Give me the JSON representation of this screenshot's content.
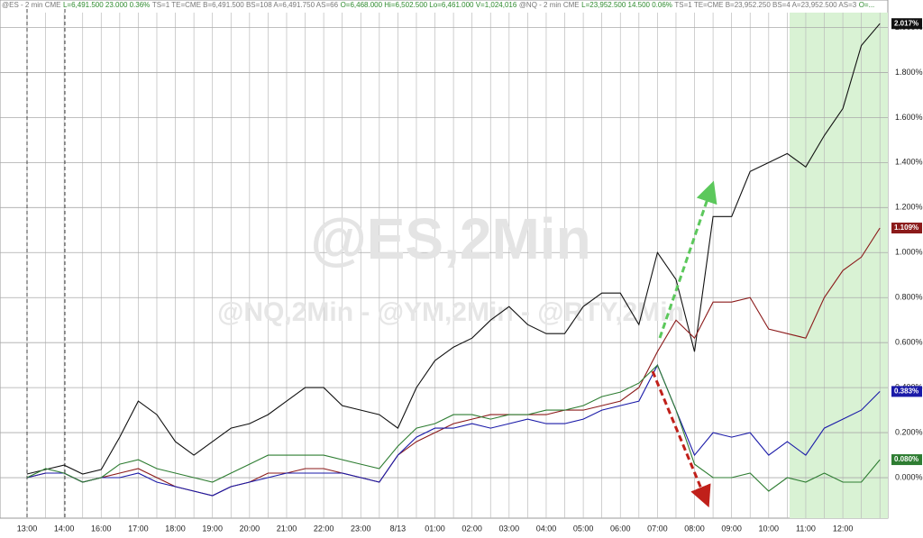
{
  "header": {
    "es_name": "@ES - 2 min CME",
    "es_quote": "L=6,491.500 23.000 0.36%",
    "es_info": "TS=1 TE=CME B=6,491.500 BS=108 A=6,491.750 AS=66",
    "es_ohlc": "O=6,468.000 Hi=6,502.500 Lo=6,461.000 V=1,024,016",
    "nq_name": "@NQ - 2 min CME",
    "nq_quote": "L=23,952.500 14.500 0.06%",
    "nq_info": "TS=1 TE=CME B=23,952.250 BS=4 A=23,952.500 AS=3",
    "nq_ohlc": "O=..."
  },
  "chart_data": {
    "type": "line",
    "watermark": "@ES,2Min",
    "watermark_sub": "@NQ,2Min - @YM,2Min - @RTY,2Min",
    "categories": [
      "13:00",
      null,
      "14:00",
      null,
      "16:00",
      null,
      "17:00",
      null,
      "18:00",
      null,
      "19:00",
      null,
      "20:00",
      null,
      "21:00",
      null,
      "22:00",
      null,
      "23:00",
      null,
      "8/13",
      null,
      "01:00",
      null,
      "02:00",
      null,
      "03:00",
      null,
      "04:00",
      null,
      "05:00",
      null,
      "06:00",
      null,
      "07:00",
      null,
      "08:00",
      null,
      "09:00",
      null,
      "10:00",
      null,
      "11:00",
      null,
      "12:00",
      null,
      null
    ],
    "ylim": [
      -0.18,
      2.05
    ],
    "yticks": [
      {
        "value": 0,
        "label": "0.000%"
      },
      {
        "value": 0.2,
        "label": "0.200%"
      },
      {
        "value": 0.4,
        "label": "0.400%"
      },
      {
        "value": 0.6,
        "label": "0.600%"
      },
      {
        "value": 0.8,
        "label": "0.800%"
      },
      {
        "value": 1.0,
        "label": "1.000%"
      },
      {
        "value": 1.2,
        "label": "1.200%"
      },
      {
        "value": 1.4,
        "label": "1.400%"
      },
      {
        "value": 1.6,
        "label": "1.600%"
      },
      {
        "value": 1.8,
        "label": "1.800%"
      },
      {
        "value": 2.0,
        "label": "2.000%"
      }
    ],
    "grid": true,
    "series": [
      {
        "color": "#111111",
        "values": [
          0.016,
          0.036,
          0.056,
          0.016,
          0.036,
          0.18,
          0.34,
          0.28,
          0.16,
          0.1,
          0.16,
          0.22,
          0.24,
          0.28,
          0.34,
          0.4,
          0.4,
          0.32,
          0.3,
          0.28,
          0.22,
          0.4,
          0.52,
          0.58,
          0.62,
          0.7,
          0.76,
          0.68,
          0.64,
          0.64,
          0.76,
          0.82,
          0.82,
          0.68,
          1.0,
          0.88,
          0.56,
          1.16,
          1.16,
          1.36,
          1.4,
          1.44,
          1.38,
          1.52,
          1.64,
          1.92,
          2.017
        ],
        "value_labels": [
          null,
          null,
          null,
          null,
          null,
          null,
          null,
          null,
          null,
          null,
          null,
          null,
          null,
          null,
          null,
          null,
          null,
          null,
          null,
          null,
          null,
          null,
          null,
          null,
          null,
          null,
          null,
          null,
          null,
          null,
          null,
          null,
          null,
          null,
          null,
          null,
          null,
          null,
          null,
          null,
          null,
          null,
          null,
          null,
          null,
          null,
          "2.017%"
        ]
      },
      {
        "color": "#8b1a1a",
        "values": [
          0.0,
          0.02,
          0.02,
          -0.02,
          0.0,
          0.02,
          0.04,
          0.0,
          -0.04,
          -0.06,
          -0.08,
          -0.04,
          -0.02,
          0.02,
          0.02,
          0.04,
          0.04,
          0.02,
          0.0,
          -0.02,
          0.1,
          0.16,
          0.2,
          0.24,
          0.26,
          0.28,
          0.28,
          0.28,
          0.28,
          0.3,
          0.3,
          0.32,
          0.34,
          0.4,
          0.56,
          0.7,
          0.62,
          0.78,
          0.78,
          0.8,
          0.66,
          0.64,
          0.62,
          0.8,
          0.92,
          0.98,
          1.109
        ],
        "value_labels": [
          null,
          null,
          null,
          null,
          null,
          null,
          null,
          null,
          null,
          null,
          null,
          null,
          null,
          null,
          null,
          null,
          null,
          null,
          null,
          null,
          null,
          null,
          null,
          null,
          null,
          null,
          null,
          null,
          null,
          null,
          null,
          null,
          null,
          null,
          null,
          null,
          null,
          null,
          null,
          null,
          null,
          null,
          null,
          null,
          null,
          null,
          "1.109%"
        ]
      },
      {
        "color": "#1a1aa8",
        "values": [
          0.0,
          0.02,
          0.02,
          -0.02,
          0.0,
          0.0,
          0.02,
          -0.02,
          -0.04,
          -0.06,
          -0.08,
          -0.04,
          -0.02,
          0.0,
          0.02,
          0.02,
          0.02,
          0.02,
          0.0,
          -0.02,
          0.1,
          0.18,
          0.22,
          0.22,
          0.24,
          0.22,
          0.24,
          0.26,
          0.24,
          0.24,
          0.26,
          0.3,
          0.32,
          0.34,
          0.5,
          0.3,
          0.1,
          0.2,
          0.18,
          0.2,
          0.1,
          0.16,
          0.1,
          0.22,
          0.26,
          0.3,
          0.383
        ],
        "value_labels": [
          null,
          null,
          null,
          null,
          null,
          null,
          null,
          null,
          null,
          null,
          null,
          null,
          null,
          null,
          null,
          null,
          null,
          null,
          null,
          null,
          null,
          null,
          null,
          null,
          null,
          null,
          null,
          null,
          null,
          null,
          null,
          null,
          null,
          null,
          null,
          null,
          null,
          null,
          null,
          null,
          null,
          null,
          null,
          null,
          null,
          null,
          "0.383%"
        ]
      },
      {
        "color": "#2e7d32",
        "values": [
          0.0,
          0.04,
          0.02,
          -0.02,
          0.0,
          0.06,
          0.08,
          0.04,
          0.02,
          0.0,
          -0.02,
          0.02,
          0.06,
          0.1,
          0.1,
          0.1,
          0.1,
          0.08,
          0.06,
          0.04,
          0.14,
          0.22,
          0.24,
          0.28,
          0.28,
          0.26,
          0.28,
          0.28,
          0.3,
          0.3,
          0.32,
          0.36,
          0.38,
          0.42,
          0.5,
          0.3,
          0.06,
          0.0,
          0.0,
          0.02,
          -0.06,
          0.0,
          -0.02,
          0.02,
          -0.02,
          -0.02,
          0.08
        ],
        "value_labels": [
          null,
          null,
          null,
          null,
          null,
          null,
          null,
          null,
          null,
          null,
          null,
          null,
          null,
          null,
          null,
          null,
          null,
          null,
          null,
          null,
          null,
          null,
          null,
          null,
          null,
          null,
          null,
          null,
          null,
          null,
          null,
          null,
          null,
          null,
          null,
          null,
          null,
          null,
          null,
          null,
          null,
          null,
          null,
          null,
          null,
          null,
          "0.080%"
        ]
      }
    ]
  }
}
